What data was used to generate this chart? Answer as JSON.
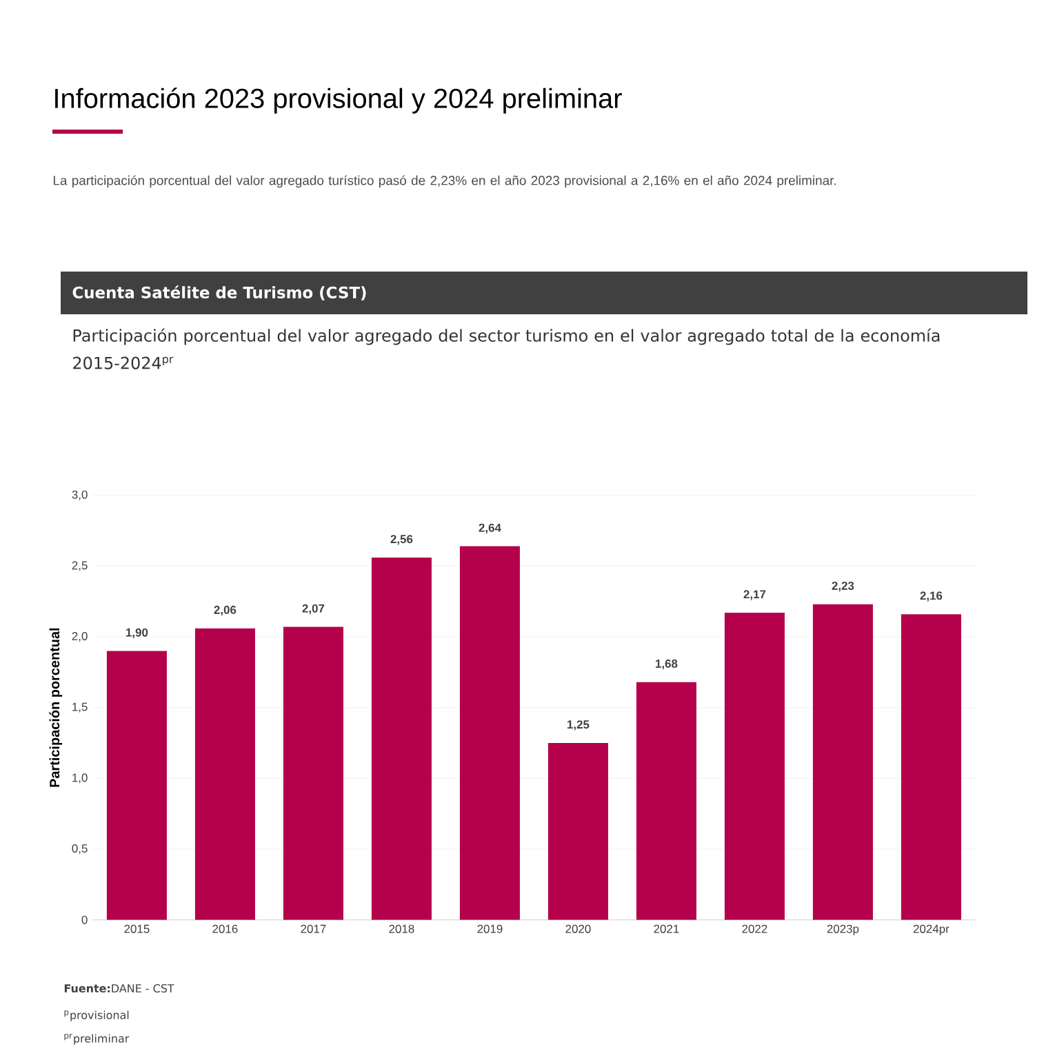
{
  "chart_data": {
    "type": "bar",
    "title": "Información 2023 provisional y 2024 preliminar",
    "subtitle": "La participación porcentual del valor agregado turístico pasó de 2,23% en el año 2023 provisional a 2,16% en el año 2024 preliminar.",
    "annotations": [
      "Cuenta Satélite de Turismo (CST)",
      "Participación porcentual del valor agregado del sector turismo en el valor agregado total de la economía",
      "2015-2024$^{pr}$",
      "**Fuente:**DANE - CST",
      "$^{p}$provisional",
      "$^{pr}$preliminar"
    ],
    "ylabel": "Participación porcentual",
    "categories": [
      "2015",
      "2016",
      "2017",
      "2018",
      "2019",
      "2020",
      "2021",
      "2022",
      "2023p",
      "2024pr"
    ],
    "values": [
      1.9,
      2.06,
      2.07,
      2.56,
      2.64,
      1.25,
      1.68,
      2.17,
      2.23,
      2.16
    ],
    "value_labels": [
      "1,90",
      "2,06",
      "2,07",
      "2,56",
      "2,64",
      "1,25",
      "1,68",
      "2,17",
      "2,23",
      "2,16"
    ],
    "color": "#b5004b",
    "ylim": [
      0,
      3
    ],
    "yticks": [
      {
        "value": 0,
        "label": "0"
      },
      {
        "value": 0.5,
        "label": "0,5"
      },
      {
        "value": 1,
        "label": "1,0"
      },
      {
        "value": 1.5,
        "label": "1,5"
      },
      {
        "value": 2,
        "label": "2,0"
      },
      {
        "value": 2.5,
        "label": "2,5"
      },
      {
        "value": 3,
        "label": "3,0"
      }
    ],
    "grid": "y"
  }
}
